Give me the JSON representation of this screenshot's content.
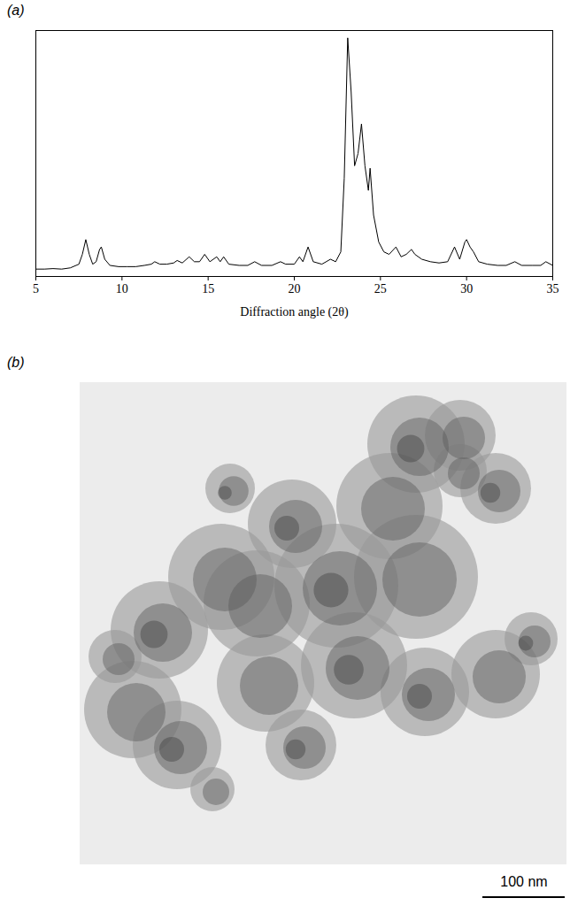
{
  "chart_data": {
    "type": "line",
    "panel_label": "(a)",
    "x_label": "Diffraction angle (2θ)",
    "x": [
      5.0,
      5.5,
      6.0,
      6.5,
      7.0,
      7.5,
      7.7,
      7.9,
      8.1,
      8.3,
      8.5,
      8.7,
      8.8,
      9.0,
      9.3,
      9.8,
      10.3,
      10.8,
      11.3,
      11.7,
      11.9,
      12.2,
      12.6,
      13.0,
      13.2,
      13.5,
      13.9,
      14.2,
      14.5,
      14.8,
      15.1,
      15.5,
      15.7,
      15.9,
      16.2,
      16.8,
      17.3,
      17.7,
      18.1,
      18.7,
      19.2,
      19.5,
      20.0,
      20.3,
      20.5,
      20.8,
      21.1,
      21.6,
      22.1,
      22.4,
      22.7,
      22.9,
      23.1,
      23.3,
      23.5,
      23.7,
      23.9,
      24.1,
      24.3,
      24.4,
      24.6,
      24.9,
      25.2,
      25.5,
      25.9,
      26.2,
      26.5,
      26.8,
      27.0,
      27.4,
      27.9,
      28.4,
      28.9,
      29.3,
      29.6,
      29.9,
      30.0,
      30.2,
      30.4,
      30.7,
      31.2,
      31.8,
      32.3,
      32.8,
      33.2,
      33.8,
      34.3,
      34.6,
      35.0
    ],
    "values": [
      3,
      3,
      3.2,
      3,
      3.5,
      5,
      9,
      15,
      9,
      5,
      6,
      11,
      12,
      7,
      4.5,
      4,
      4,
      4,
      4.5,
      5,
      6,
      5,
      5,
      5.5,
      6.5,
      5.5,
      8,
      6,
      6,
      9,
      6,
      8,
      6,
      8,
      5,
      4.5,
      4.5,
      6,
      4.5,
      4.5,
      6,
      5,
      5,
      8,
      6,
      12,
      6,
      5,
      7,
      6,
      10,
      40,
      97,
      75,
      45,
      50,
      62,
      45,
      35,
      44,
      25,
      14,
      10,
      9,
      12,
      8,
      9,
      11,
      9,
      7,
      6,
      5.5,
      6,
      12,
      7,
      14,
      15,
      12,
      10,
      6,
      5,
      4.5,
      4.5,
      6,
      4.5,
      4.5,
      4.5,
      6,
      4.5
    ],
    "color": "#000000",
    "xlim": [
      5,
      35
    ],
    "xticks": [
      5,
      10,
      15,
      20,
      25,
      30,
      35
    ],
    "ylim": [
      0,
      100
    ],
    "tick_labels": "x",
    "grid": false
  },
  "micrograph": {
    "panel_label": "(b)",
    "scale_bar": {
      "label": "100 nm"
    }
  }
}
